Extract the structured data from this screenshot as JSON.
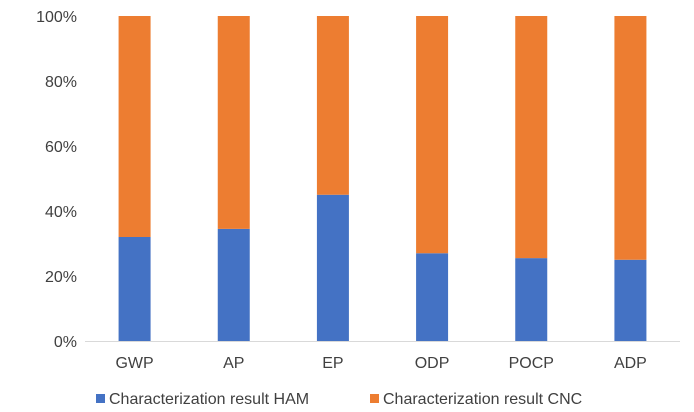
{
  "chart_data": {
    "type": "bar",
    "stacked": "percent",
    "categories": [
      "GWP",
      "AP",
      "EP",
      "ODP",
      "POCP",
      "ADP"
    ],
    "series": [
      {
        "name": "Characterization result HAM",
        "color": "#4472C4",
        "values": [
          32,
          34.5,
          45,
          27,
          25.5,
          25
        ]
      },
      {
        "name": "Characterization result CNC",
        "color": "#ED7D31",
        "values": [
          68,
          65.5,
          55,
          73,
          74.5,
          75
        ]
      }
    ],
    "yticks": [
      "0%",
      "20%",
      "40%",
      "60%",
      "80%",
      "100%"
    ],
    "ylim": [
      0,
      100
    ],
    "grid": false,
    "legend_position": "bottom"
  }
}
